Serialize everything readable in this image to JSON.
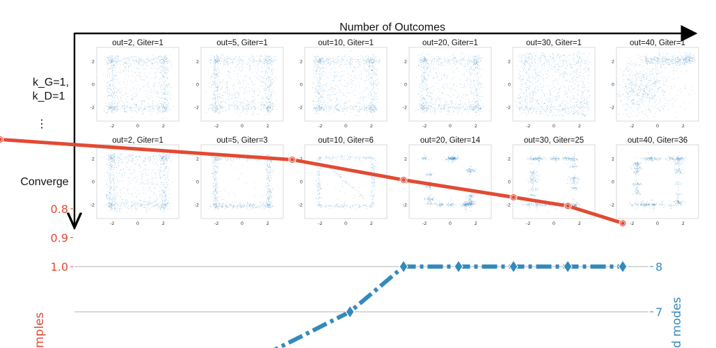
{
  "figure": {
    "x_axis_title": "Number of Outcomes",
    "row_labels": [
      "k_G=1,",
      "k_D=1",
      "⋮",
      "Converge"
    ]
  },
  "colors": {
    "scatter": "#1f77b4",
    "samples_line": "#e24a33",
    "modes_line": "#348abd",
    "grid": "#b0b0b0",
    "axis": "#000000"
  },
  "chart_data": [
    {
      "type": "scatter",
      "grid": "2x6 small multiples",
      "xlim": [
        -3.2,
        3.2
      ],
      "ylim": [
        -3.2,
        3.2
      ],
      "ticks": [
        "-2",
        "0",
        "2"
      ],
      "panels": [
        {
          "row": 0,
          "title": "out=2, Giter=1",
          "outcomes": 2,
          "giter": 1,
          "pattern": "noisy-square"
        },
        {
          "row": 0,
          "title": "out=5, Giter=1",
          "outcomes": 5,
          "giter": 1,
          "pattern": "noisy-square"
        },
        {
          "row": 0,
          "title": "out=10, Giter=1",
          "outcomes": 10,
          "giter": 1,
          "pattern": "noisy-square"
        },
        {
          "row": 0,
          "title": "out=20, Giter=1",
          "outcomes": 20,
          "giter": 1,
          "pattern": "noisy-square"
        },
        {
          "row": 0,
          "title": "out=30, Giter=1",
          "outcomes": 30,
          "giter": 1,
          "pattern": "diffuse-square"
        },
        {
          "row": 0,
          "title": "out=40, Giter=1",
          "outcomes": 40,
          "giter": 1,
          "pattern": "collapsed-blob"
        },
        {
          "row": 1,
          "title": "out=2, Giter=1",
          "outcomes": 2,
          "giter": 1,
          "pattern": "noisy-square"
        },
        {
          "row": 1,
          "title": "out=5, Giter=3",
          "outcomes": 5,
          "giter": 3,
          "pattern": "square"
        },
        {
          "row": 1,
          "title": "out=10, Giter=6",
          "outcomes": 10,
          "giter": 6,
          "pattern": "sparse-square"
        },
        {
          "row": 1,
          "title": "out=20, Giter=14",
          "outcomes": 20,
          "giter": 14,
          "pattern": "modes"
        },
        {
          "row": 1,
          "title": "out=30, Giter=25",
          "outcomes": 30,
          "giter": 25,
          "pattern": "modes"
        },
        {
          "row": 1,
          "title": "out=40, Giter=36",
          "outcomes": 40,
          "giter": 36,
          "pattern": "modes"
        }
      ]
    },
    {
      "type": "line",
      "left_ticks": [
        "1.0",
        "0.9",
        "0.8"
      ],
      "left_ylabel": "mples",
      "right_ticks": [
        "8",
        "7"
      ],
      "right_ylabel": "d modes",
      "left_ylim": [
        0.7,
        1.05
      ],
      "right_ylim": [
        5.5,
        8.4
      ],
      "grid": true,
      "series": [
        {
          "role": "samples",
          "axis": "left",
          "marker": "circle",
          "style": "solid",
          "x": [
            1,
            2,
            3,
            4,
            5,
            6
          ],
          "y": [
            0.56,
            0.63,
            0.7,
            0.76,
            0.79,
            0.85
          ]
        },
        {
          "role": "modes",
          "axis": "right",
          "marker": "diamond",
          "style": "dashdot",
          "x": [
            1,
            2,
            3,
            4,
            5,
            6
          ],
          "y": [
            5.2,
            6.0,
            7.0,
            8.0,
            8.0,
            8.0
          ],
          "marker_x": [
            2.8,
            4,
            5,
            6,
            7,
            8
          ]
        }
      ]
    }
  ]
}
